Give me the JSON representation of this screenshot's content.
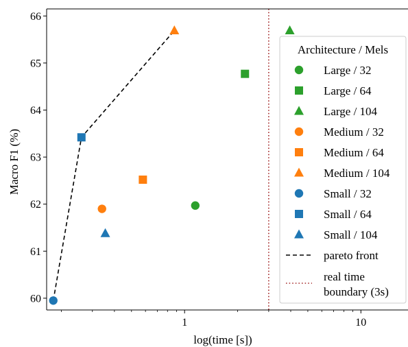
{
  "chart_data": {
    "type": "scatter",
    "xlabel": "log(time [s])",
    "ylabel": "Macro F1 (%)",
    "xscale": "log",
    "xlim": [
      0.165,
      18.5
    ],
    "ylim": [
      59.75,
      66.15
    ],
    "xticks": [
      {
        "value": 1,
        "label": "1"
      },
      {
        "value": 10,
        "label": "10"
      }
    ],
    "yticks": [
      {
        "value": 60,
        "label": "60"
      },
      {
        "value": 61,
        "label": "61"
      },
      {
        "value": 62,
        "label": "62"
      },
      {
        "value": 63,
        "label": "63"
      },
      {
        "value": 64,
        "label": "64"
      },
      {
        "value": 65,
        "label": "65"
      },
      {
        "value": 66,
        "label": "66"
      }
    ],
    "legend_title": "Architecture / Mels",
    "legend_position": "right",
    "series": [
      {
        "name": "Large / 32",
        "marker": "circle",
        "color": "#2ca02c",
        "x": 1.15,
        "y": 61.97
      },
      {
        "name": "Large / 64",
        "marker": "square",
        "color": "#2ca02c",
        "x": 2.2,
        "y": 64.77
      },
      {
        "name": "Large / 104",
        "marker": "triangle",
        "color": "#2ca02c",
        "x": 3.95,
        "y": 65.69
      },
      {
        "name": "Medium / 32",
        "marker": "circle",
        "color": "#ff7f0e",
        "x": 0.34,
        "y": 61.9
      },
      {
        "name": "Medium / 64",
        "marker": "square",
        "color": "#ff7f0e",
        "x": 0.58,
        "y": 62.52
      },
      {
        "name": "Medium / 104",
        "marker": "triangle",
        "color": "#ff7f0e",
        "x": 0.875,
        "y": 65.69
      },
      {
        "name": "Small / 32",
        "marker": "circle",
        "color": "#1f77b4",
        "x": 0.18,
        "y": 59.95
      },
      {
        "name": "Small / 64",
        "marker": "square",
        "color": "#1f77b4",
        "x": 0.26,
        "y": 63.42
      },
      {
        "name": "Small / 104",
        "marker": "triangle",
        "color": "#1f77b4",
        "x": 0.355,
        "y": 61.38
      }
    ],
    "pareto_front": {
      "name": "pareto front",
      "points": [
        {
          "x": 0.18,
          "y": 59.95
        },
        {
          "x": 0.26,
          "y": 63.42
        },
        {
          "x": 0.875,
          "y": 65.69
        }
      ]
    },
    "realtime_boundary": {
      "name_lines": [
        "real time",
        "boundary (3s)"
      ],
      "x": 3,
      "color": "#a52a2a"
    }
  }
}
